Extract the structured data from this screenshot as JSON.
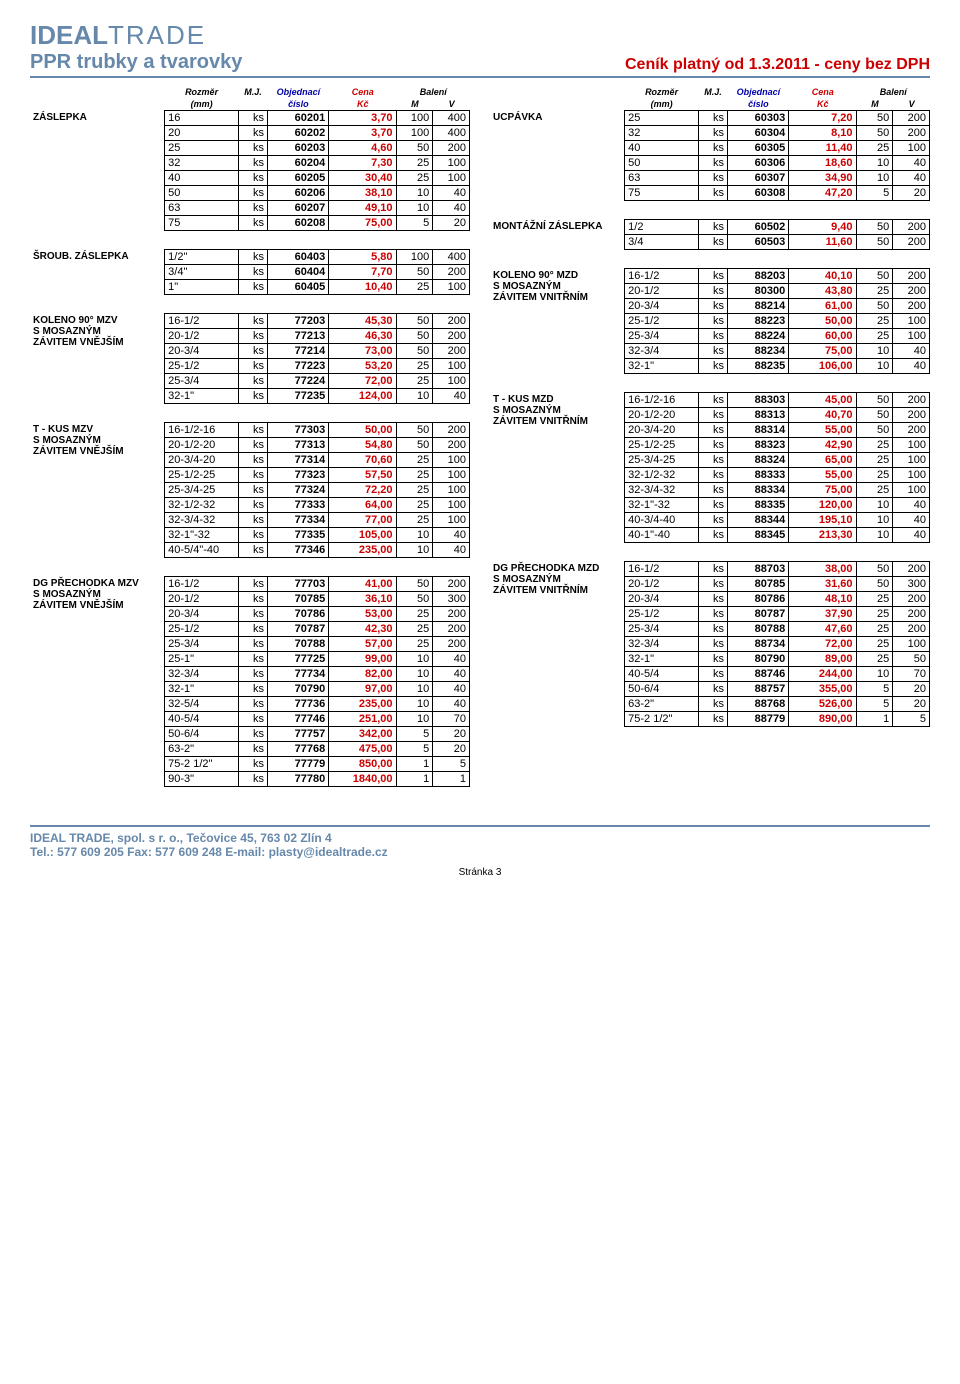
{
  "header": {
    "logo_bold": "IDEAL",
    "logo_light": "TRADE",
    "subtitle": "PPR trubky a tvarovky",
    "cenik": "Ceník platný od 1.3.2011 - ceny bez DPH"
  },
  "col_headers": {
    "rozmer": "Rozměr",
    "rozmer2": "(mm)",
    "mj": "M.J.",
    "obj": "Objednací",
    "obj2": "číslo",
    "cena": "Cena",
    "cena2": "Kč",
    "baleni": "Balení",
    "m": "M",
    "v": "V"
  },
  "sections_left": [
    {
      "name": "ZÁSLEPKA",
      "rows": [
        [
          "16",
          "ks",
          "60201",
          "3,70",
          "100",
          "400"
        ],
        [
          "20",
          "ks",
          "60202",
          "3,70",
          "100",
          "400"
        ],
        [
          "25",
          "ks",
          "60203",
          "4,60",
          "50",
          "200"
        ],
        [
          "32",
          "ks",
          "60204",
          "7,30",
          "25",
          "100"
        ],
        [
          "40",
          "ks",
          "60205",
          "30,40",
          "25",
          "100"
        ],
        [
          "50",
          "ks",
          "60206",
          "38,10",
          "10",
          "40"
        ],
        [
          "63",
          "ks",
          "60207",
          "49,10",
          "10",
          "40"
        ],
        [
          "75",
          "ks",
          "60208",
          "75,00",
          "5",
          "20"
        ]
      ]
    },
    {
      "name": "ŠROUB. ZÁSLEPKA",
      "rows": [
        [
          "1/2\"",
          "ks",
          "60403",
          "5,80",
          "100",
          "400"
        ],
        [
          "3/4\"",
          "ks",
          "60404",
          "7,70",
          "50",
          "200"
        ],
        [
          "1\"",
          "ks",
          "60405",
          "10,40",
          "25",
          "100"
        ]
      ]
    },
    {
      "name": "KOLENO 90° MZV\nS MOSAZNÝM\nZÁVITEM VNĚJŠÍM",
      "rows": [
        [
          "16-1/2",
          "ks",
          "77203",
          "45,30",
          "50",
          "200"
        ],
        [
          "20-1/2",
          "ks",
          "77213",
          "46,30",
          "50",
          "200"
        ],
        [
          "20-3/4",
          "ks",
          "77214",
          "73,00",
          "50",
          "200"
        ],
        [
          "25-1/2",
          "ks",
          "77223",
          "53,20",
          "25",
          "100"
        ],
        [
          "25-3/4",
          "ks",
          "77224",
          "72,00",
          "25",
          "100"
        ],
        [
          "32-1\"",
          "ks",
          "77235",
          "124,00",
          "10",
          "40"
        ]
      ]
    },
    {
      "name": "T - KUS MZV\nS MOSAZNÝM\nZÁVITEM VNĚJŠÍM",
      "rows": [
        [
          "16-1/2-16",
          "ks",
          "77303",
          "50,00",
          "50",
          "200"
        ],
        [
          "20-1/2-20",
          "ks",
          "77313",
          "54,80",
          "50",
          "200"
        ],
        [
          "20-3/4-20",
          "ks",
          "77314",
          "70,60",
          "25",
          "100"
        ],
        [
          "25-1/2-25",
          "ks",
          "77323",
          "57,50",
          "25",
          "100"
        ],
        [
          "25-3/4-25",
          "ks",
          "77324",
          "72,20",
          "25",
          "100"
        ],
        [
          "32-1/2-32",
          "ks",
          "77333",
          "64,00",
          "25",
          "100"
        ],
        [
          "32-3/4-32",
          "ks",
          "77334",
          "77,00",
          "25",
          "100"
        ],
        [
          "32-1\"-32",
          "ks",
          "77335",
          "105,00",
          "10",
          "40"
        ],
        [
          "40-5/4\"-40",
          "ks",
          "77346",
          "235,00",
          "10",
          "40"
        ]
      ]
    },
    {
      "name": "DG PŘECHODKA MZV\nS MOSAZNÝM\nZÁVITEM VNĚJŠÍM",
      "rows": [
        [
          "16-1/2",
          "ks",
          "77703",
          "41,00",
          "50",
          "200"
        ],
        [
          "20-1/2",
          "ks",
          "70785",
          "36,10",
          "50",
          "300"
        ],
        [
          "20-3/4",
          "ks",
          "70786",
          "53,00",
          "25",
          "200"
        ],
        [
          "25-1/2",
          "ks",
          "70787",
          "42,30",
          "25",
          "200"
        ],
        [
          "25-3/4",
          "ks",
          "70788",
          "57,00",
          "25",
          "200"
        ],
        [
          "25-1\"",
          "ks",
          "77725",
          "99,00",
          "10",
          "40"
        ],
        [
          "32-3/4",
          "ks",
          "77734",
          "82,00",
          "10",
          "40"
        ],
        [
          "32-1\"",
          "ks",
          "70790",
          "97,00",
          "10",
          "40"
        ],
        [
          "32-5/4",
          "ks",
          "77736",
          "235,00",
          "10",
          "40"
        ],
        [
          "40-5/4",
          "ks",
          "77746",
          "251,00",
          "10",
          "70"
        ],
        [
          "50-6/4",
          "ks",
          "77757",
          "342,00",
          "5",
          "20"
        ],
        [
          "63-2\"",
          "ks",
          "77768",
          "475,00",
          "5",
          "20"
        ],
        [
          "75-2 1/2\"",
          "ks",
          "77779",
          "850,00",
          "1",
          "5"
        ],
        [
          "90-3\"",
          "ks",
          "77780",
          "1840,00",
          "1",
          "1"
        ]
      ]
    }
  ],
  "sections_right": [
    {
      "name": "UCPÁVKA",
      "rows": [
        [
          "25",
          "ks",
          "60303",
          "7,20",
          "50",
          "200"
        ],
        [
          "32",
          "ks",
          "60304",
          "8,10",
          "50",
          "200"
        ],
        [
          "40",
          "ks",
          "60305",
          "11,40",
          "25",
          "100"
        ],
        [
          "50",
          "ks",
          "60306",
          "18,60",
          "10",
          "40"
        ],
        [
          "63",
          "ks",
          "60307",
          "34,90",
          "10",
          "40"
        ],
        [
          "75",
          "ks",
          "60308",
          "47,20",
          "5",
          "20"
        ]
      ]
    },
    {
      "name": "MONTÁŽNÍ ZÁSLEPKA",
      "rows": [
        [
          "1/2",
          "ks",
          "60502",
          "9,40",
          "50",
          "200"
        ],
        [
          "3/4",
          "ks",
          "60503",
          "11,60",
          "50",
          "200"
        ]
      ]
    },
    {
      "name": "KOLENO 90° MZD\nS MOSAZNÝM\nZÁVITEM VNITŘNÍM",
      "rows": [
        [
          "16-1/2",
          "ks",
          "88203",
          "40,10",
          "50",
          "200"
        ],
        [
          "20-1/2",
          "ks",
          "80300",
          "43,80",
          "25",
          "200"
        ],
        [
          "20-3/4",
          "ks",
          "88214",
          "61,00",
          "50",
          "200"
        ],
        [
          "25-1/2",
          "ks",
          "88223",
          "50,00",
          "25",
          "100"
        ],
        [
          "25-3/4",
          "ks",
          "88224",
          "60,00",
          "25",
          "100"
        ],
        [
          "32-3/4",
          "ks",
          "88234",
          "75,00",
          "10",
          "40"
        ],
        [
          "32-1\"",
          "ks",
          "88235",
          "106,00",
          "10",
          "40"
        ]
      ]
    },
    {
      "name": "T - KUS MZD\nS MOSAZNÝM\nZÁVITEM VNITŘNÍM",
      "rows": [
        [
          "16-1/2-16",
          "ks",
          "88303",
          "45,00",
          "50",
          "200"
        ],
        [
          "20-1/2-20",
          "ks",
          "88313",
          "40,70",
          "50",
          "200"
        ],
        [
          "20-3/4-20",
          "ks",
          "88314",
          "55,00",
          "50",
          "200"
        ],
        [
          "25-1/2-25",
          "ks",
          "88323",
          "42,90",
          "25",
          "100"
        ],
        [
          "25-3/4-25",
          "ks",
          "88324",
          "65,00",
          "25",
          "100"
        ],
        [
          "32-1/2-32",
          "ks",
          "88333",
          "55,00",
          "25",
          "100"
        ],
        [
          "32-3/4-32",
          "ks",
          "88334",
          "75,00",
          "25",
          "100"
        ],
        [
          "32-1\"-32",
          "ks",
          "88335",
          "120,00",
          "10",
          "40"
        ],
        [
          "40-3/4-40",
          "ks",
          "88344",
          "195,10",
          "10",
          "40"
        ],
        [
          "40-1\"-40",
          "ks",
          "88345",
          "213,30",
          "10",
          "40"
        ]
      ]
    },
    {
      "name": "DG PŘECHODKA MZD\nS MOSAZNÝM\nZÁVITEM VNITŘNÍM",
      "rows": [
        [
          "16-1/2",
          "ks",
          "88703",
          "38,00",
          "50",
          "200"
        ],
        [
          "20-1/2",
          "ks",
          "80785",
          "31,60",
          "50",
          "300"
        ],
        [
          "20-3/4",
          "ks",
          "80786",
          "48,10",
          "25",
          "200"
        ],
        [
          "25-1/2",
          "ks",
          "80787",
          "37,90",
          "25",
          "200"
        ],
        [
          "25-3/4",
          "ks",
          "80788",
          "47,60",
          "25",
          "200"
        ],
        [
          "32-3/4",
          "ks",
          "88734",
          "72,00",
          "25",
          "100"
        ],
        [
          "32-1\"",
          "ks",
          "80790",
          "89,00",
          "25",
          "50"
        ],
        [
          "40-5/4",
          "ks",
          "88746",
          "244,00",
          "10",
          "70"
        ],
        [
          "50-6/4",
          "ks",
          "88757",
          "355,00",
          "5",
          "20"
        ],
        [
          "63-2\"",
          "ks",
          "88768",
          "526,00",
          "5",
          "20"
        ],
        [
          "75-2 1/2\"",
          "ks",
          "88779",
          "890,00",
          "1",
          "5"
        ]
      ]
    }
  ],
  "footer": {
    "line1": "IDEAL TRADE, spol. s r. o., Tečovice 45, 763 02 Zlín 4",
    "line2": "Tel.: 577 609 205 Fax: 577 609 248 E-mail: plasty@idealtrade.cz",
    "page": "Stránka 3"
  }
}
